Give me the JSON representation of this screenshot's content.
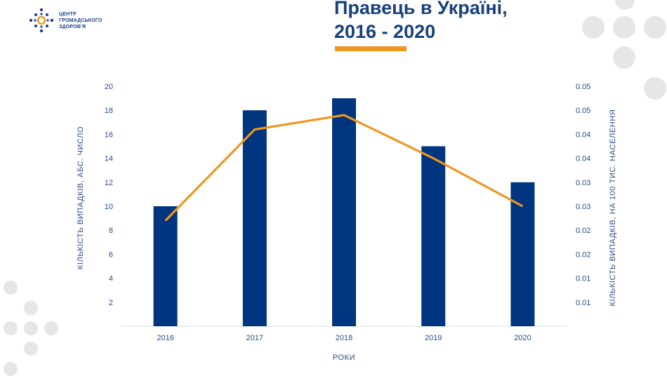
{
  "logo": {
    "line1": "ЦЕНТР",
    "line2": "ГРОМАДСЬКОГО",
    "line3": "ЗДОРОВ'Я"
  },
  "title": {
    "line1": "Правець в Україні,",
    "line2": "2016 - 2020"
  },
  "colors": {
    "bar": "#003580",
    "line": "#f0961e",
    "title": "#17407c",
    "text": "#2d4a8a",
    "deco": "#e6e6e6"
  },
  "chart_data": {
    "type": "bar",
    "categories": [
      "2016",
      "2017",
      "2018",
      "2019",
      "2020"
    ],
    "series": [
      {
        "type": "bar",
        "axis": "left",
        "values": [
          10,
          18,
          19,
          15,
          12
        ]
      },
      {
        "type": "line",
        "axis": "right",
        "values": [
          0.022,
          0.041,
          0.044,
          0.035,
          0.025
        ]
      }
    ],
    "xlabel": "РОКИ",
    "ylabel": "КІЛЬКІСТЬ ВИПАДКІВ, АБС. ЧИСЛО",
    "y2label": "КІЛЬКІСТЬ ВИПАДКІВ, НА 100 ТИС. НАСЕЛЕННЯ",
    "ylim": [
      0,
      20
    ],
    "yticks": [
      2,
      4,
      6,
      8,
      10,
      12,
      14,
      16,
      18,
      20
    ],
    "y2lim": [
      0,
      0.05
    ],
    "y2ticks": [
      "0.01",
      "0.01",
      "0.02",
      "0.02",
      "0.03",
      "0.03",
      "0.04",
      "0.04",
      "0.05",
      "0.05"
    ],
    "grid": false
  }
}
